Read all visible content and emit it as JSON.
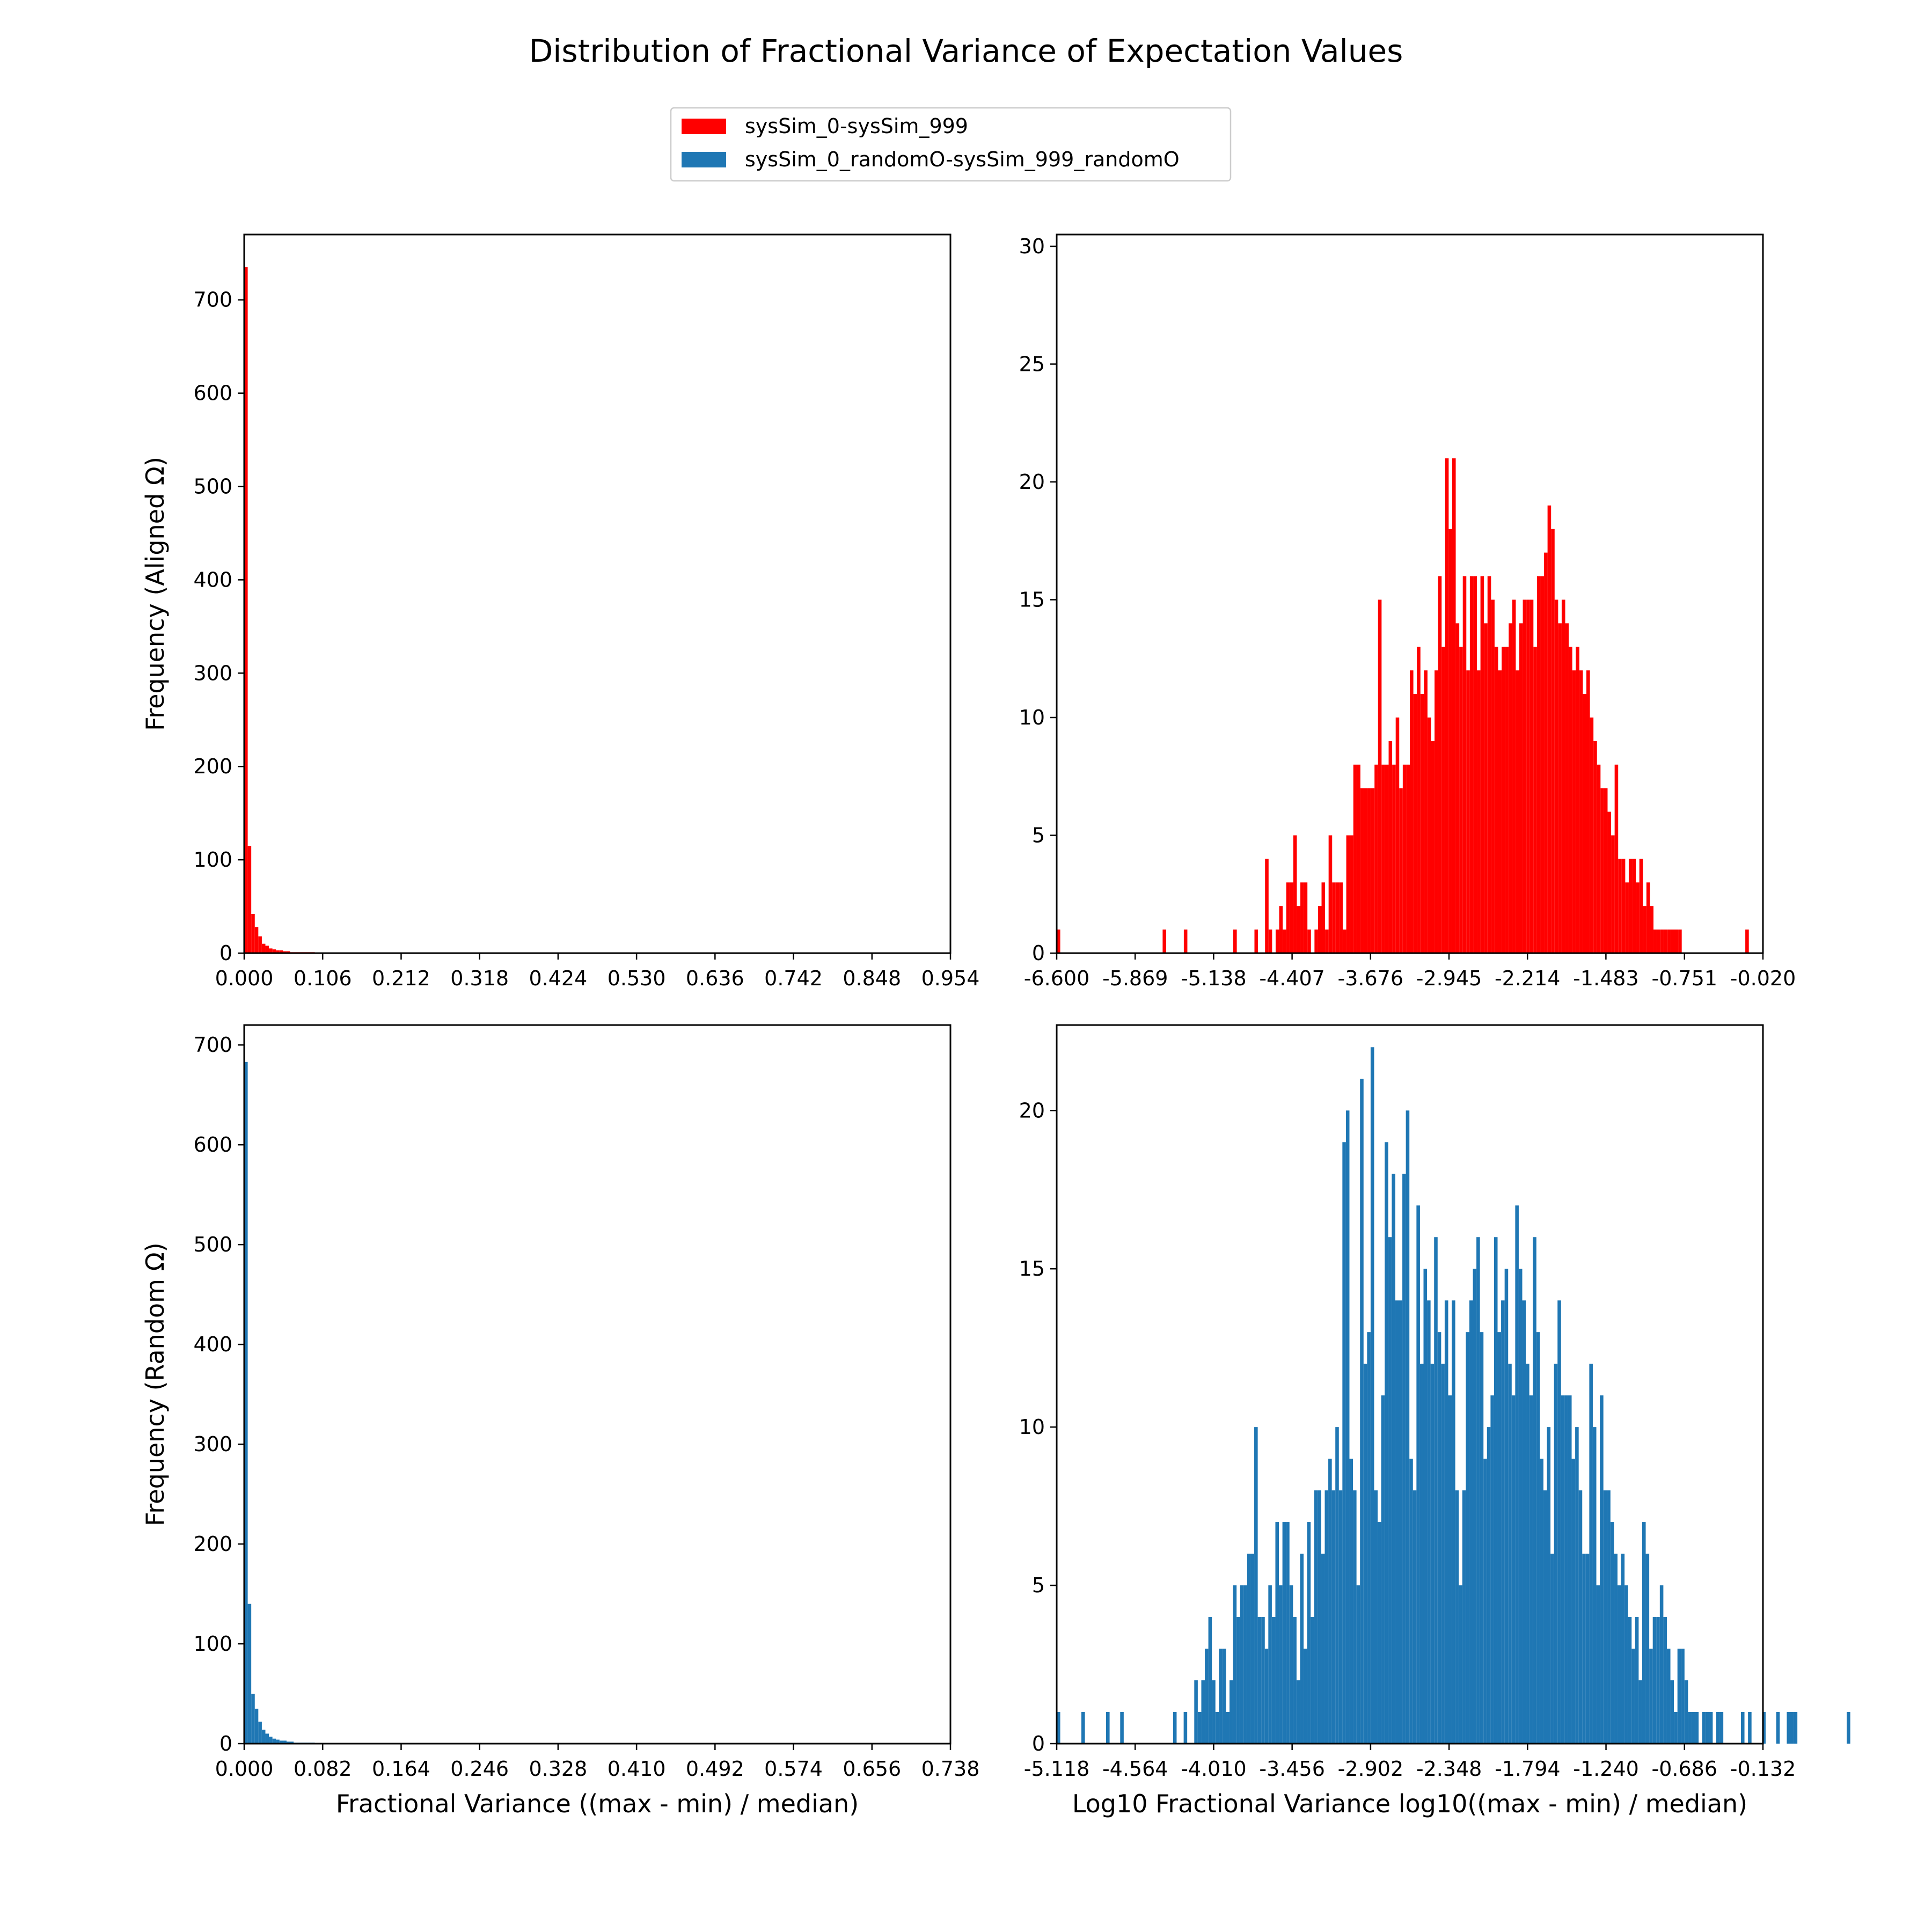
{
  "figure": {
    "title": "Distribution of Fractional Variance of Expectation Values",
    "legend": [
      {
        "label": "sysSim_0-sysSim_999",
        "color": "#ff0000"
      },
      {
        "label": "sysSim_0_randomO-sysSim_999_randomO",
        "color": "#1f77b4"
      }
    ],
    "legend_placement": "top-center"
  },
  "chart_data": [
    {
      "type": "bar",
      "panel": "top-left",
      "color": "#ff0000",
      "title": "",
      "xlabel": "",
      "ylabel": "Frequency (Aligned Ω)",
      "xlim": [
        0,
        0.954
      ],
      "ylim": [
        0,
        770
      ],
      "xticks": [
        0.0,
        0.106,
        0.212,
        0.318,
        0.424,
        0.53,
        0.636,
        0.742,
        0.848,
        0.954
      ],
      "xtick_labels": [
        "0.000",
        "0.106",
        "0.212",
        "0.318",
        "0.424",
        "0.530",
        "0.636",
        "0.742",
        "0.848",
        "0.954"
      ],
      "yticks": [
        0,
        100,
        200,
        300,
        400,
        500,
        600,
        700
      ],
      "ytick_labels": [
        "0",
        "100",
        "200",
        "300",
        "400",
        "500",
        "600",
        "700"
      ],
      "grid": false,
      "x_start": 0,
      "bin_width": 0.00477,
      "values": [
        735,
        115,
        42,
        28,
        18,
        10,
        8,
        5,
        4,
        3,
        3,
        2,
        2,
        1,
        1,
        1,
        1,
        1,
        1,
        1
      ]
    },
    {
      "type": "bar",
      "panel": "top-right",
      "color": "#ff0000",
      "title": "",
      "xlabel": "",
      "ylabel": "",
      "xlim": [
        -6.6,
        -0.02
      ],
      "ylim": [
        0,
        30.5
      ],
      "xticks": [
        -6.6,
        -5.869,
        -5.138,
        -4.407,
        -3.676,
        -2.945,
        -2.214,
        -1.483,
        -0.751,
        -0.02
      ],
      "xtick_labels": [
        "-6.600",
        "-5.869",
        "-5.138",
        "-4.407",
        "-3.676",
        "-2.945",
        "-2.214",
        "-1.483",
        "-0.751",
        "-0.020"
      ],
      "yticks": [
        0,
        5,
        10,
        15,
        20,
        25,
        30
      ],
      "ytick_labels": [
        "0",
        "5",
        "10",
        "15",
        "20",
        "25",
        "30"
      ],
      "grid": false,
      "x_start": -6.6,
      "bin_width": 0.0329,
      "values": [
        1,
        0,
        0,
        0,
        0,
        0,
        0,
        0,
        0,
        0,
        0,
        0,
        0,
        0,
        0,
        0,
        0,
        0,
        0,
        0,
        0,
        0,
        0,
        0,
        0,
        0,
        0,
        0,
        0,
        0,
        1,
        0,
        0,
        0,
        0,
        0,
        1,
        0,
        0,
        0,
        0,
        0,
        0,
        0,
        0,
        0,
        0,
        0,
        0,
        0,
        1,
        0,
        0,
        0,
        0,
        0,
        1,
        0,
        0,
        4,
        1,
        0,
        1,
        2,
        1,
        3,
        3,
        5,
        2,
        3,
        3,
        1,
        0,
        1,
        2,
        3,
        1,
        5,
        3,
        3,
        3,
        1,
        5,
        5,
        8,
        8,
        7,
        7,
        7,
        7,
        8,
        15,
        8,
        8,
        9,
        8,
        10,
        7,
        8,
        8,
        12,
        11,
        13,
        11,
        12,
        10,
        9,
        12,
        16,
        13,
        21,
        18,
        21,
        14,
        13,
        16,
        12,
        16,
        16,
        12,
        16,
        14,
        16,
        15,
        13,
        12,
        13,
        13,
        14,
        15,
        12,
        14,
        15,
        15,
        15,
        13,
        16,
        16,
        17,
        19,
        18,
        15,
        14,
        15,
        14,
        13,
        12,
        13,
        12,
        11,
        12,
        10,
        9,
        8,
        7,
        7,
        6,
        5,
        8,
        4,
        4,
        3,
        4,
        4,
        3,
        4,
        2,
        3,
        2,
        1,
        1,
        1,
        1,
        1,
        1,
        1,
        1,
        0,
        0,
        0,
        0,
        0,
        0,
        0,
        0,
        0,
        0,
        0,
        0,
        0,
        0,
        0,
        0,
        0,
        0,
        1
      ]
    },
    {
      "type": "bar",
      "panel": "bottom-left",
      "color": "#1f77b4",
      "title": "",
      "xlabel": "Fractional Variance ((max - min) / median)",
      "ylabel": "Frequency (Random Ω)",
      "xlim": [
        0,
        0.738
      ],
      "ylim": [
        0,
        720
      ],
      "xticks": [
        0.0,
        0.082,
        0.164,
        0.246,
        0.328,
        0.41,
        0.492,
        0.574,
        0.656,
        0.738
      ],
      "xtick_labels": [
        "0.000",
        "0.082",
        "0.164",
        "0.246",
        "0.328",
        "0.410",
        "0.492",
        "0.574",
        "0.656",
        "0.738"
      ],
      "yticks": [
        0,
        100,
        200,
        300,
        400,
        500,
        600,
        700
      ],
      "ytick_labels": [
        "0",
        "100",
        "200",
        "300",
        "400",
        "500",
        "600",
        "700"
      ],
      "grid": false,
      "x_start": 0,
      "bin_width": 0.00369,
      "values": [
        683,
        140,
        50,
        35,
        22,
        14,
        10,
        7,
        5,
        4,
        3,
        3,
        2,
        2,
        1,
        1,
        1,
        1,
        1,
        1
      ]
    },
    {
      "type": "bar",
      "panel": "bottom-right",
      "color": "#1f77b4",
      "title": "",
      "xlabel": "Log10 Fractional Variance log10((max - min) / median)",
      "ylabel": "",
      "xlim": [
        -5.118,
        -0.132
      ],
      "ylim": [
        0,
        22.7
      ],
      "xticks": [
        -5.118,
        -4.564,
        -4.01,
        -3.456,
        -2.902,
        -2.348,
        -1.794,
        -1.24,
        -0.686,
        -0.132
      ],
      "xtick_labels": [
        "-5.118",
        "-4.564",
        "-4.010",
        "-3.456",
        "-2.902",
        "-2.348",
        "-1.794",
        "-1.240",
        "-0.686",
        "-0.132"
      ],
      "yticks": [
        0,
        5,
        10,
        15,
        20
      ],
      "ytick_labels": [
        "0",
        "5",
        "10",
        "15",
        "20"
      ],
      "grid": false,
      "x_start": -5.118,
      "bin_width": 0.0249,
      "values": [
        1,
        0,
        0,
        0,
        0,
        0,
        0,
        1,
        0,
        0,
        0,
        0,
        0,
        0,
        1,
        0,
        0,
        0,
        1,
        0,
        0,
        0,
        0,
        0,
        0,
        0,
        0,
        0,
        0,
        0,
        0,
        0,
        0,
        1,
        0,
        0,
        1,
        0,
        0,
        2,
        1,
        2,
        3,
        4,
        2,
        1,
        3,
        3,
        1,
        2,
        5,
        4,
        5,
        5,
        6,
        6,
        10,
        4,
        4,
        3,
        5,
        4,
        7,
        5,
        7,
        7,
        5,
        4,
        2,
        6,
        3,
        7,
        4,
        8,
        8,
        6,
        8,
        9,
        8,
        10,
        8,
        19,
        20,
        9,
        8,
        5,
        21,
        12,
        13,
        22,
        8,
        7,
        11,
        19,
        16,
        18,
        14,
        14,
        18,
        20,
        9,
        8,
        17,
        12,
        15,
        14,
        12,
        16,
        13,
        12,
        14,
        11,
        14,
        8,
        5,
        8,
        13,
        14,
        15,
        16,
        13,
        9,
        10,
        11,
        16,
        13,
        14,
        15,
        12,
        11,
        17,
        15,
        14,
        12,
        11,
        16,
        13,
        9,
        8,
        10,
        6,
        12,
        14,
        11,
        11,
        11,
        9,
        10,
        8,
        6,
        6,
        12,
        10,
        5,
        11,
        8,
        8,
        7,
        6,
        5,
        6,
        5,
        4,
        3,
        4,
        2,
        7,
        6,
        3,
        4,
        4,
        5,
        4,
        3,
        2,
        1,
        3,
        3,
        2,
        1,
        1,
        1,
        0,
        1,
        1,
        1,
        0,
        1,
        1,
        0,
        0,
        0,
        0,
        0,
        1,
        0,
        1,
        0,
        0,
        0,
        1,
        0,
        0,
        0,
        1,
        0,
        0,
        1,
        1,
        1,
        0,
        0,
        0,
        0,
        0,
        0,
        0,
        0,
        0,
        0,
        0,
        0,
        0,
        0,
        1
      ]
    }
  ]
}
